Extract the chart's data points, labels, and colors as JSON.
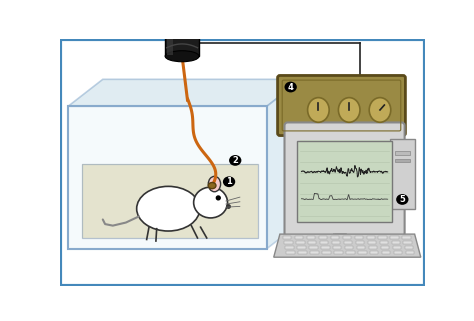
{
  "bg_color": "#ffffff",
  "outer_border": "#5599bb",
  "cage_fill": "#ddeeff",
  "cage_border": "#88aacc",
  "floor_fill": "#e8e0c0",
  "cable_color": "#cc6611",
  "wire_color": "#222222",
  "amp_fill": "#9a8a44",
  "amp_border": "#6a5a20",
  "amp_knob_fill": "#c8b870",
  "cyl_fill": "#1a1a1a",
  "cyl_top": "#333333",
  "comp_fill": "#d8d8d8",
  "comp_border": "#888888",
  "screen_fill": "#d0ddd0",
  "kb_fill": "#cccccc",
  "label_bg": "#111111",
  "label_fg": "#ffffff"
}
